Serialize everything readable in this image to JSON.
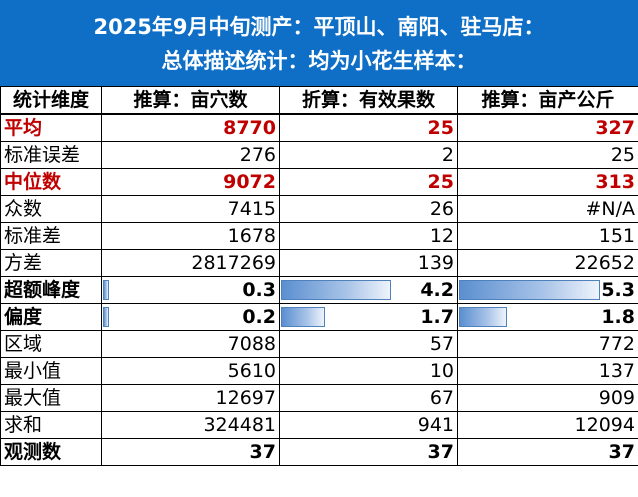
{
  "title": {
    "line1": "2025年9月中旬测产：平顶山、南阳、驻马店：",
    "line2": "总体描述统计：均为小花生样本："
  },
  "table": {
    "headers": [
      "统计维度",
      "推算：亩穴数",
      "折算：有效果数",
      "推算：亩产公斤"
    ],
    "rows": [
      {
        "label": "平均",
        "values": [
          "8770",
          "25",
          "327"
        ]
      },
      {
        "label": "标准误差",
        "values": [
          "276",
          "2",
          "25"
        ]
      },
      {
        "label": "中位数",
        "values": [
          "9072",
          "25",
          "313"
        ]
      },
      {
        "label": "众数",
        "values": [
          "7415",
          "26",
          "#N/A"
        ]
      },
      {
        "label": "标准差",
        "values": [
          "1678",
          "12",
          "151"
        ]
      },
      {
        "label": "方差",
        "values": [
          "2817269",
          "139",
          "22652"
        ]
      },
      {
        "label": "超额峰度",
        "values": [
          "0.3",
          "4.2",
          "5.3"
        ],
        "bars": [
          0.04,
          0.8,
          1.0
        ]
      },
      {
        "label": "偏度",
        "values": [
          "0.2",
          "1.7",
          "1.8"
        ],
        "bars": [
          0.04,
          0.32,
          0.34
        ]
      },
      {
        "label": "区域",
        "values": [
          "7088",
          "57",
          "772"
        ]
      },
      {
        "label": "最小值",
        "values": [
          "5610",
          "10",
          "137"
        ]
      },
      {
        "label": "最大值",
        "values": [
          "12697",
          "67",
          "909"
        ]
      },
      {
        "label": "求和",
        "values": [
          "324481",
          "941",
          "12094"
        ]
      },
      {
        "label": "观测数",
        "values": [
          "37",
          "37",
          "37"
        ]
      }
    ]
  },
  "colors": {
    "title_bg": "#0f6fc6",
    "title_text": "#ffffff",
    "highlight_text": "#c00000",
    "databar": "#5b8fd0"
  }
}
